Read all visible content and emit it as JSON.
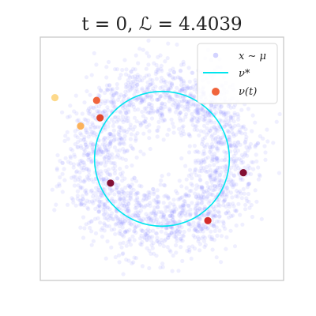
{
  "chart_data": {
    "type": "scatter",
    "title": "t = 0, ℒ = 4.4039",
    "xlim": [
      -1.75,
      1.75
    ],
    "ylim": [
      -1.75,
      1.75
    ],
    "xlabel": "",
    "ylabel": "",
    "grid": false,
    "legend": {
      "placement": "top-right",
      "entries": [
        {
          "label": "x ∼ μ",
          "marker": "point",
          "color": "#8080ff"
        },
        {
          "label": "ν*",
          "marker": "line",
          "color": "#00e5ee"
        },
        {
          "label": "ν(t)",
          "marker": "point",
          "color": "#f0643c"
        }
      ]
    },
    "mu_samples": {
      "description_free_params_only": true,
      "distribution": "ring",
      "count": 2200,
      "radius": 1.0,
      "spread": 0.26,
      "seed": 7,
      "color": "#8080ff",
      "opacity": 0.13
    },
    "target_circle": {
      "center": [
        0,
        0
      ],
      "radius": 0.97,
      "color": "#00e5ee"
    },
    "particles": [
      {
        "x": -1.54,
        "y": 0.88,
        "color": "#fdd98b"
      },
      {
        "x": -0.94,
        "y": 0.84,
        "color": "#f0643c"
      },
      {
        "x": -1.17,
        "y": 0.47,
        "color": "#fbb25a"
      },
      {
        "x": -0.89,
        "y": 0.59,
        "color": "#e0462c"
      },
      {
        "x": -0.74,
        "y": -0.35,
        "color": "#820f33"
      },
      {
        "x": 1.17,
        "y": -0.2,
        "color": "#820f33"
      },
      {
        "x": 0.66,
        "y": -0.89,
        "color": "#d42c2a"
      }
    ]
  }
}
